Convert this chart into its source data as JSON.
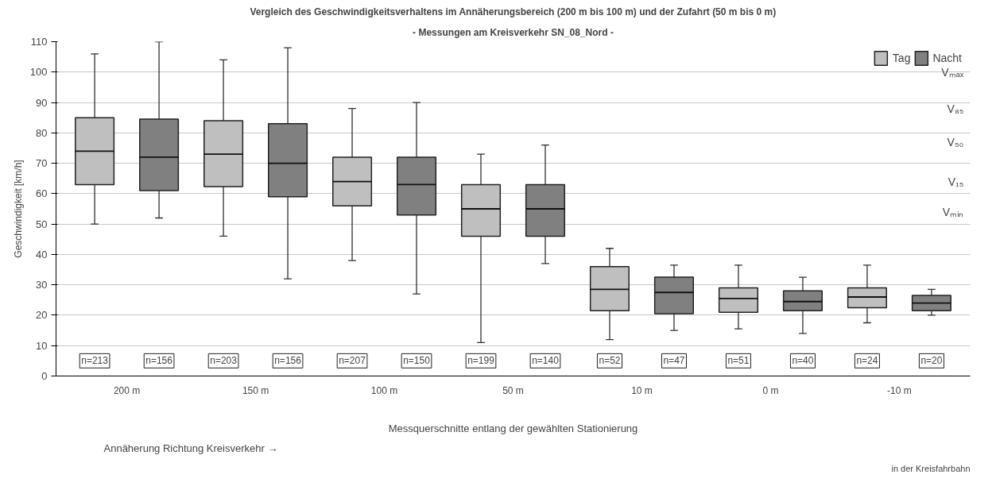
{
  "chart_data": {
    "type": "box",
    "title": "Vergleich des Geschwindigkeitsverhaltens im Annäherungsbereich (200 m bis 100 m) und der Zufahrt (50 m bis 0 m)",
    "subtitle": "- Messungen am Kreisverkehr SN_08_Nord -",
    "ylabel": "Geschwindigkeit [km/h]",
    "xlabel": "Messquerschnitte entlang der gewählten Stationierung",
    "categories": [
      "200 m",
      "150 m",
      "100 m",
      "50 m",
      "10 m",
      "0 m",
      "-10 m"
    ],
    "series": [
      {
        "name": "Tag",
        "color": "#bfbfbf",
        "boxes": [
          {
            "low": 50,
            "q1": 63,
            "median": 74,
            "q3": 85,
            "high": 106
          },
          {
            "low": 46,
            "q1": 62.3,
            "median": 73,
            "q3": 84,
            "high": 104
          },
          {
            "low": 38,
            "q1": 56,
            "median": 64,
            "q3": 72,
            "high": 88
          },
          {
            "low": 11,
            "q1": 46,
            "median": 55,
            "q3": 63,
            "high": 73
          },
          {
            "low": 12,
            "q1": 21.5,
            "median": 28.5,
            "q3": 36,
            "high": 42
          },
          {
            "low": 15.5,
            "q1": 21,
            "median": 25.5,
            "q3": 29,
            "high": 36.5
          },
          {
            "low": 17.5,
            "q1": 22.5,
            "median": 26,
            "q3": 29,
            "high": 36.5
          }
        ]
      },
      {
        "name": "Nacht",
        "color": "#808080",
        "boxes": [
          {
            "low": 52,
            "q1": 61,
            "median": 72,
            "q3": 84.5,
            "high": 110
          },
          {
            "low": 32,
            "q1": 59,
            "median": 70,
            "q3": 83,
            "high": 108
          },
          {
            "low": 27,
            "q1": 53,
            "median": 63,
            "q3": 72,
            "high": 90
          },
          {
            "low": 37,
            "q1": 46,
            "median": 55,
            "q3": 63,
            "high": 76
          },
          {
            "low": 15,
            "q1": 20.5,
            "median": 27.5,
            "q3": 32.5,
            "high": 36.5
          },
          {
            "low": 14,
            "q1": 21.5,
            "median": 24.5,
            "q3": 28,
            "high": 32.5
          },
          {
            "low": 20,
            "q1": 21.5,
            "median": 24,
            "q3": 26.5,
            "high": 28.5
          }
        ]
      }
    ],
    "ylim": [
      0,
      110
    ],
    "yticks": [
      0,
      10,
      20,
      30,
      40,
      50,
      60,
      70,
      80,
      90,
      100,
      110
    ],
    "grid": "y",
    "legend": "top right",
    "annotations": [
      "n=213",
      "n=156",
      "n=203",
      "n=156",
      "n=207",
      "n=150",
      "n=199",
      "n=140",
      "n=52",
      "n=47",
      "n=51",
      "n=40",
      "n=24",
      "n=20",
      "Annäherung Richtung Kreisverkehr →",
      "in der Kreisfahrbahn",
      "Vₘₐₓ",
      "V₈₅",
      "V₅₀",
      "V₁₅",
      "Vₘᵢₙ"
    ]
  }
}
